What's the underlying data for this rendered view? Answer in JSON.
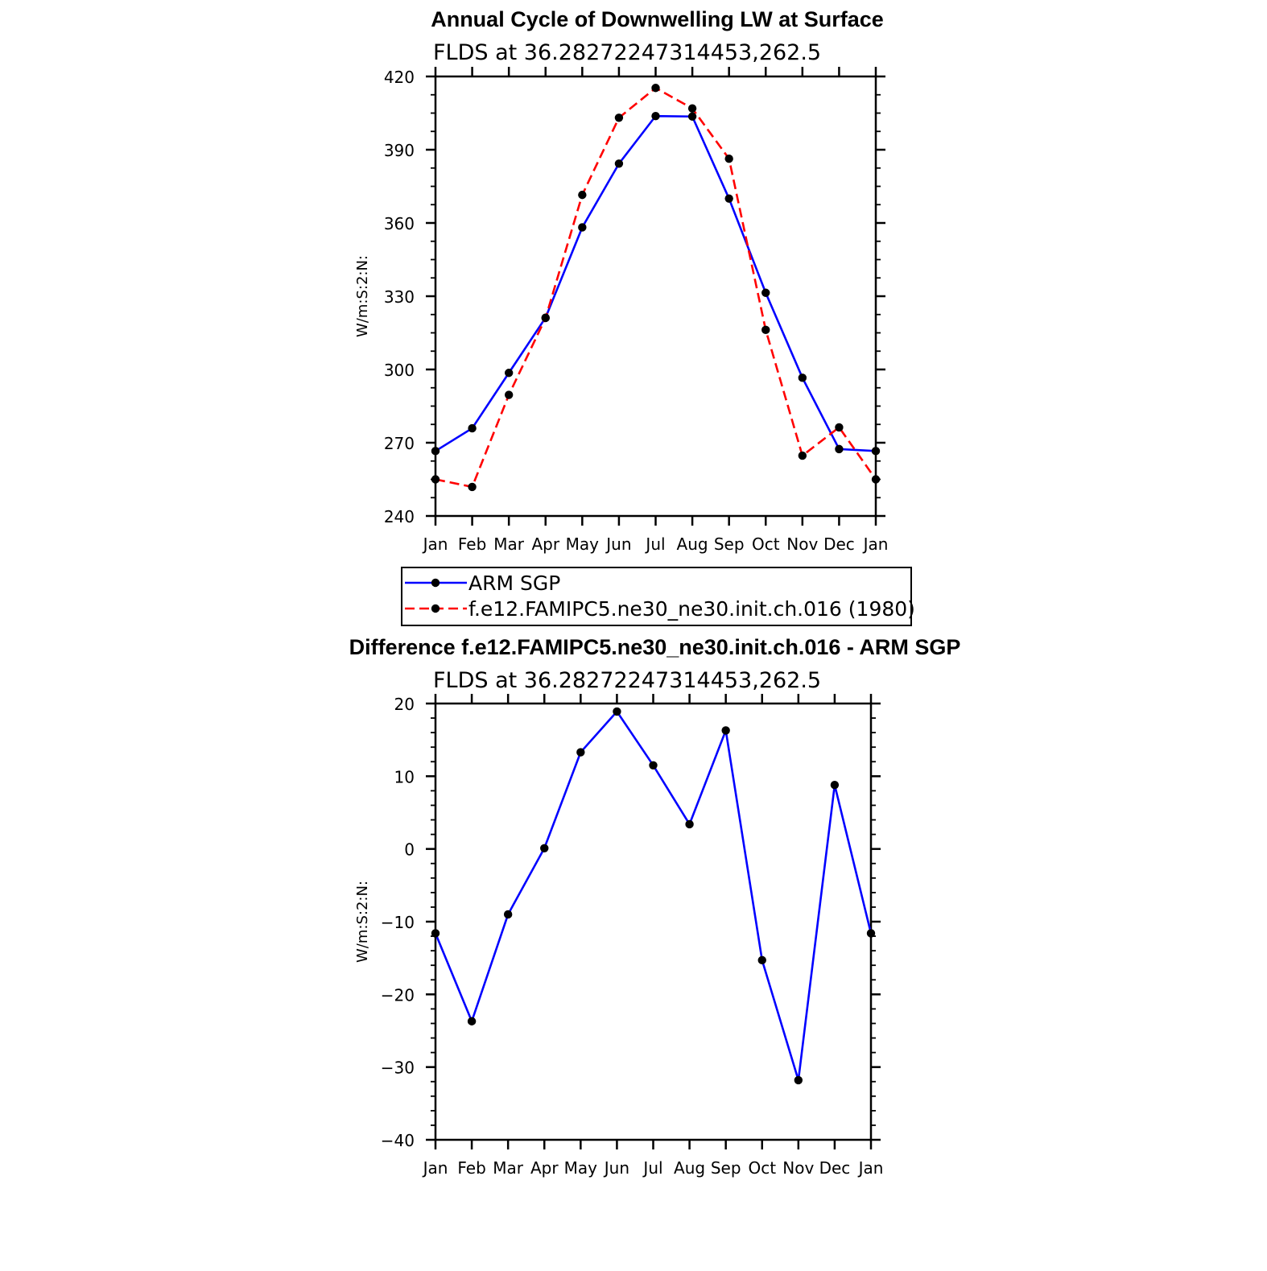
{
  "chart_data": [
    {
      "type": "line",
      "title": "Annual Cycle of Downwelling LW at Surface",
      "subtitle": "FLDS at 36.28272247314453,262.5",
      "ylabel": "W/m:S:2:N:",
      "xlabel": "",
      "categories": [
        "Jan",
        "Feb",
        "Mar",
        "Apr",
        "May",
        "Jun",
        "Jul",
        "Aug",
        "Sep",
        "Oct",
        "Nov",
        "Dec",
        "Jan"
      ],
      "ylim": [
        240,
        420
      ],
      "yticks": [
        240,
        270,
        300,
        330,
        360,
        390,
        420
      ],
      "ytick_labels": [
        "240",
        "270",
        "300",
        "330",
        "360",
        "390",
        "420"
      ],
      "legend_position": "below",
      "series": [
        {
          "name": "ARM SGP",
          "color": "#0000ff",
          "dash": "solid",
          "values": [
            266.6,
            275.9,
            298.6,
            321.2,
            358.2,
            384.3,
            403.8,
            403.6,
            370.0,
            331.4,
            296.6,
            267.4,
            266.6
          ]
        },
        {
          "name": "f.e12.FAMIPC5.ne30_ne30.init.ch.016 (1980)",
          "color": "#ff0000",
          "dash": "dashed",
          "values": [
            255.0,
            251.9,
            289.6,
            321.1,
            371.5,
            403.1,
            415.3,
            406.9,
            386.3,
            316.2,
            264.7,
            276.3,
            255.0
          ]
        }
      ]
    },
    {
      "type": "line",
      "title": "Difference f.e12.FAMIPC5.ne30_ne30.init.ch.016 - ARM SGP",
      "subtitle": "FLDS at 36.28272247314453,262.5",
      "ylabel": "W/m:S:2:N:",
      "xlabel": "",
      "categories": [
        "Jan",
        "Feb",
        "Mar",
        "Apr",
        "May",
        "Jun",
        "Jul",
        "Aug",
        "Sep",
        "Oct",
        "Nov",
        "Dec",
        "Jan"
      ],
      "ylim": [
        -40,
        20
      ],
      "yticks": [
        -40,
        -30,
        -20,
        -10,
        0,
        10,
        20
      ],
      "ytick_labels": [
        "−40",
        "−30",
        "−20",
        "−10",
        "0",
        "10",
        "20"
      ],
      "series": [
        {
          "color": "#0000ff",
          "dash": "solid",
          "values": [
            -11.6,
            -23.7,
            -9.0,
            0.1,
            13.3,
            18.9,
            11.5,
            3.4,
            16.3,
            -15.3,
            -31.8,
            8.8,
            -11.6
          ]
        }
      ]
    }
  ]
}
